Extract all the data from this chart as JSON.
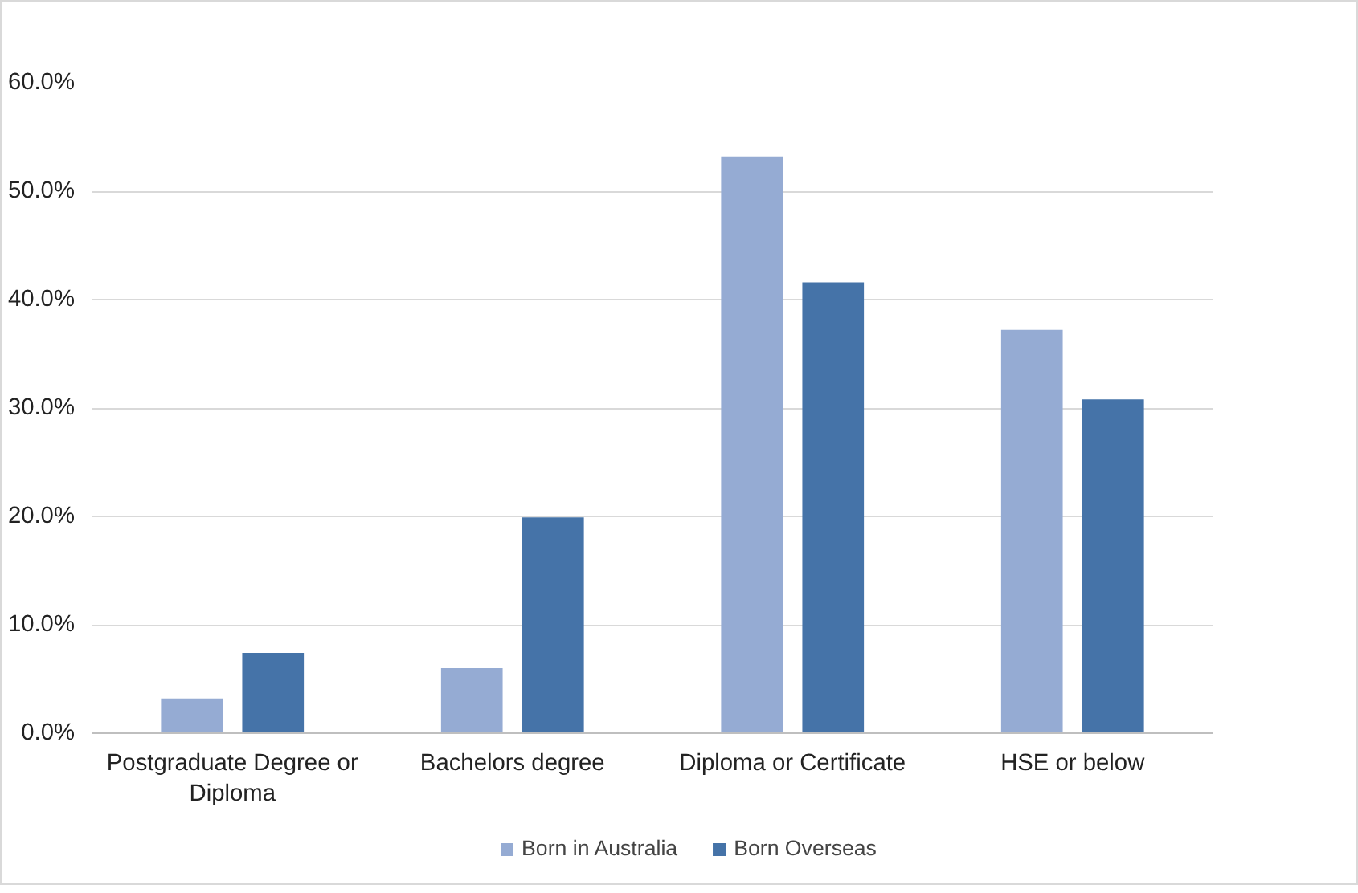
{
  "chart_data": {
    "type": "bar",
    "categories": [
      "Postgraduate Degree or Diploma",
      "Bachelors degree",
      "Diploma or Certificate",
      "HSE or below"
    ],
    "series": [
      {
        "name": "Born in Australia",
        "color": "#95abd3",
        "values": [
          3.2,
          6.0,
          53.2,
          37.2
        ]
      },
      {
        "name": "Born Overseas",
        "color": "#4573a8",
        "values": [
          7.4,
          19.9,
          41.6,
          30.8
        ]
      }
    ],
    "ylim": [
      0,
      60
    ],
    "yticks": [
      {
        "value": 0,
        "label": "0.0%"
      },
      {
        "value": 10,
        "label": "10.0%"
      },
      {
        "value": 20,
        "label": "20.0%"
      },
      {
        "value": 30,
        "label": "30.0%"
      },
      {
        "value": 40,
        "label": "40.0%"
      },
      {
        "value": 50,
        "label": "50.0%"
      },
      {
        "value": 60,
        "label": "60.0%"
      }
    ],
    "grid": "y",
    "legend": "bottom"
  }
}
